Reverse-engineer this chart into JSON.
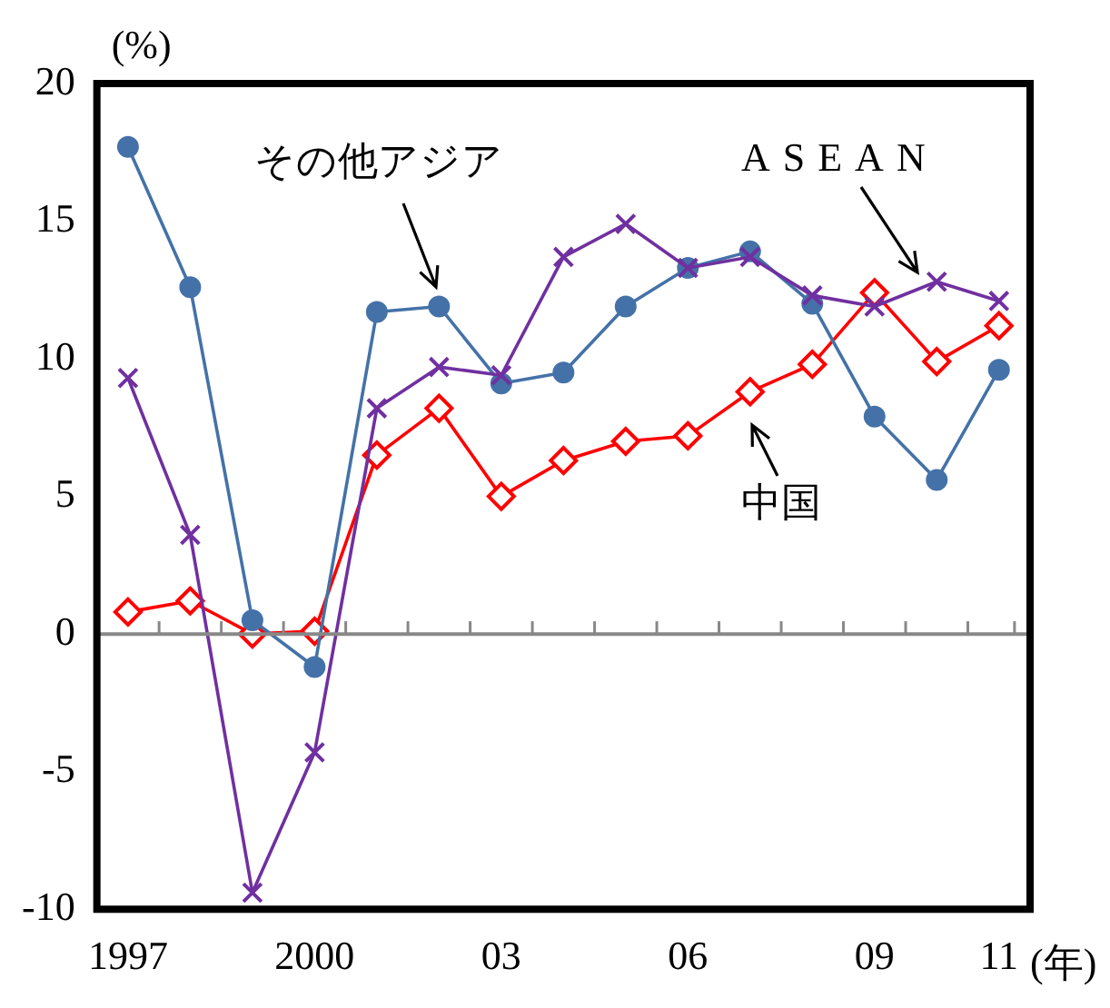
{
  "chart_data": {
    "type": "line",
    "ylabel": "(%)",
    "xlabel": "(年)",
    "categories": [
      "1997",
      null,
      null,
      "2000",
      null,
      null,
      "03",
      null,
      null,
      "06",
      null,
      null,
      "09",
      null,
      "11"
    ],
    "series": [
      {
        "name": "その他アジア",
        "color": "#4472a8",
        "marker": "circle",
        "values": [
          17.7,
          12.6,
          0.5,
          -1.2,
          11.7,
          11.9,
          9.1,
          9.5,
          11.9,
          13.3,
          13.9,
          12.0,
          7.9,
          5.6,
          9.6
        ]
      },
      {
        "name": "ASEAN",
        "color": "#7030a0",
        "marker": "cross",
        "values": [
          9.3,
          3.6,
          -9.4,
          -4.3,
          8.2,
          9.7,
          9.4,
          13.7,
          14.9,
          13.3,
          13.7,
          12.3,
          11.9,
          12.8,
          12.1
        ]
      },
      {
        "name": "中国",
        "color": "#ff0000",
        "marker": "diamond",
        "values": [
          0.8,
          1.2,
          0.0,
          0.1,
          6.5,
          8.2,
          5.0,
          6.3,
          7.0,
          7.2,
          8.8,
          9.8,
          12.4,
          9.9,
          11.2
        ]
      }
    ],
    "ylim": [
      -10,
      20
    ],
    "yticks": [
      -10,
      -5,
      0,
      5,
      10,
      15,
      20
    ],
    "ref_lines": [
      {
        "axis": "y",
        "value": 0,
        "color": "#888888"
      }
    ],
    "grid": false,
    "legend": false
  }
}
